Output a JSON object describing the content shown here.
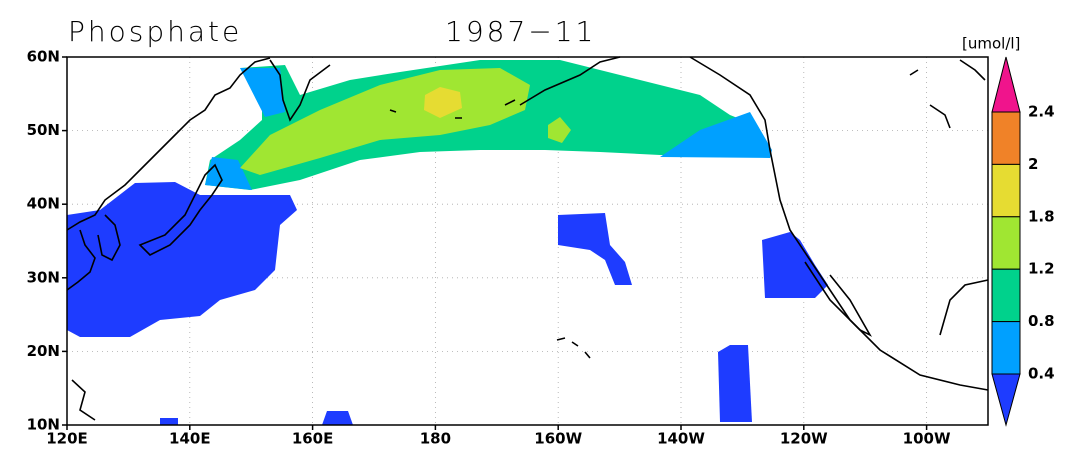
{
  "title": "Phosphate",
  "date": "1987−11",
  "units": "[umol/l]",
  "lat_labels": [
    "60N",
    "50N",
    "40N",
    "30N",
    "20N",
    "10N"
  ],
  "lon_labels": [
    "120E",
    "140E",
    "160E",
    "180",
    "160W",
    "140W",
    "120W",
    "100W"
  ],
  "colorbar": {
    "labels": [
      "2.4",
      "2",
      "1.8",
      "1.2",
      "0.8",
      "0.4"
    ],
    "colors": [
      "#f0148c",
      "#f08228",
      "#e6dc32",
      "#a0e632",
      "#00d28c",
      "#00a0ff",
      "#1e3cff"
    ]
  }
}
